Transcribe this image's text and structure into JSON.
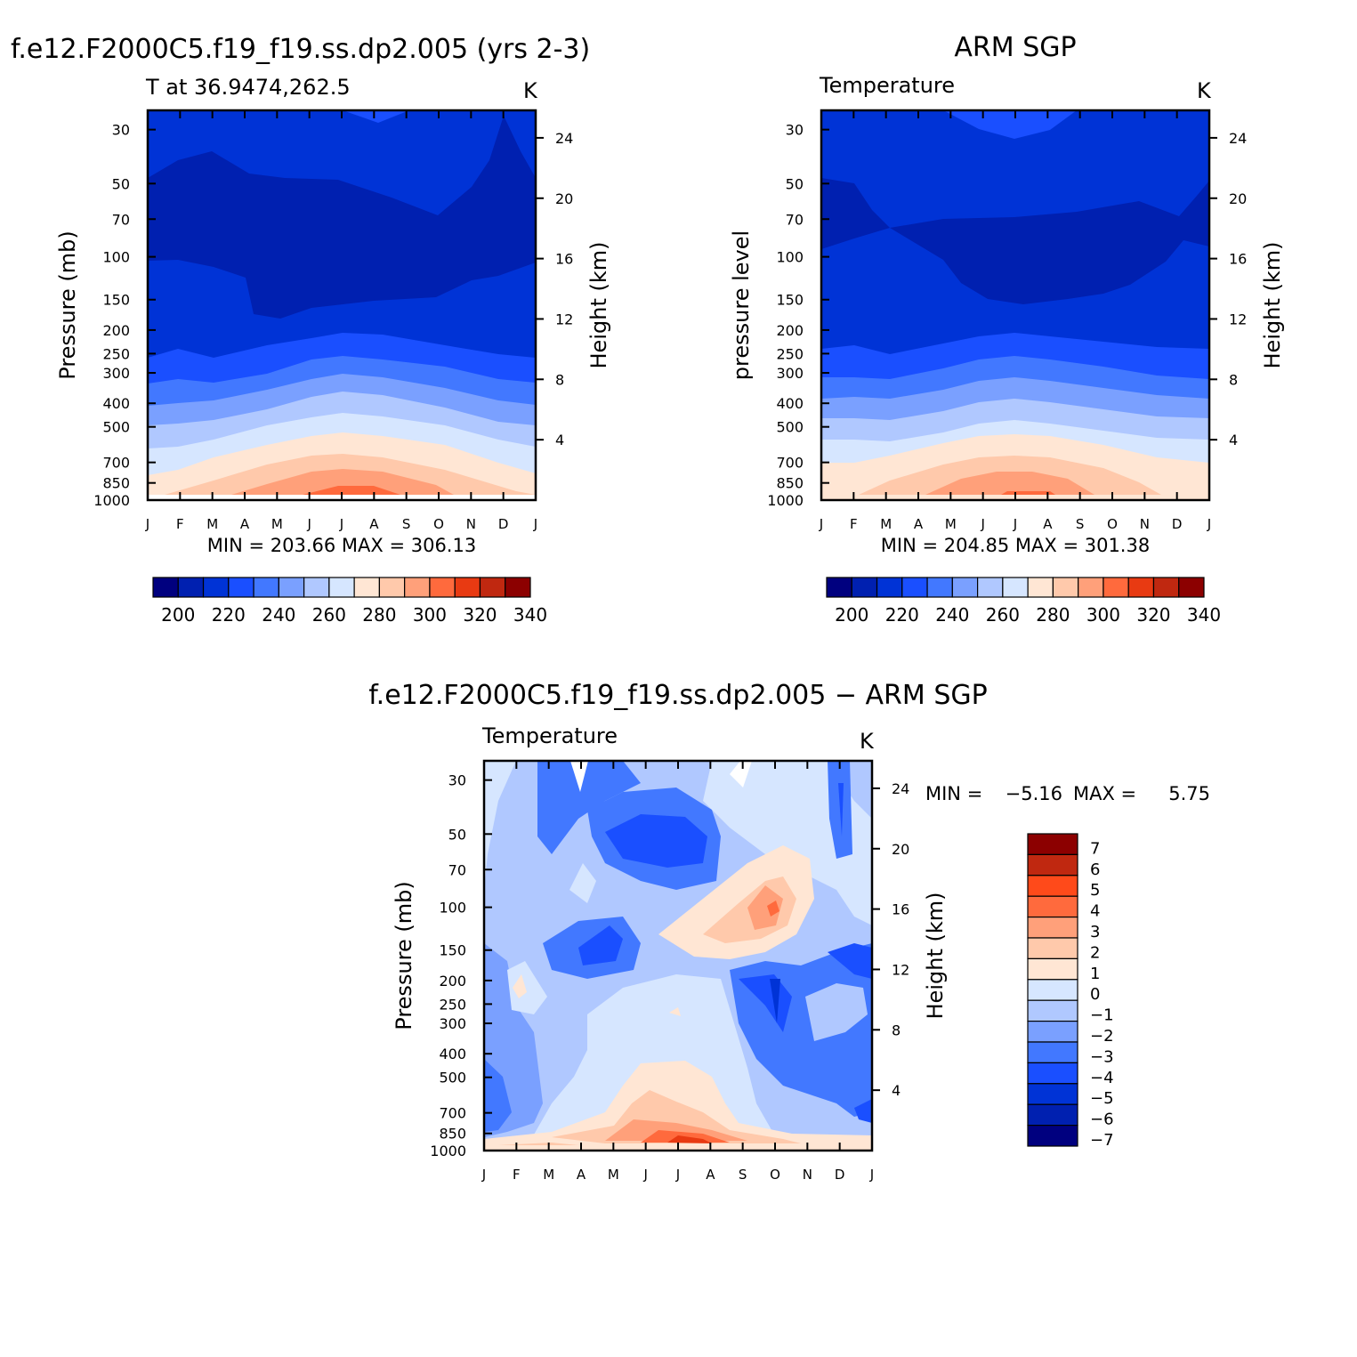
{
  "colors": {
    "levels200to340": [
      "#00007f",
      "#0020b0",
      "#0033d6",
      "#1a4fff",
      "#4278ff",
      "#7aa0ff",
      "#b0c8ff",
      "#d6e6ff",
      "#ffe6d4",
      "#ffc9ab",
      "#ffa07a",
      "#ff6a3d",
      "#e83a12",
      "#c02810",
      "#8c0000"
    ],
    "diffLevels": [
      "#00007f",
      "#0020b0",
      "#0033d6",
      "#1a4fff",
      "#4278ff",
      "#7aa0ff",
      "#b0c8ff",
      "#d6e6ff",
      "#ffe6d4",
      "#ffc9ab",
      "#ffa07a",
      "#ff6a3d",
      "#ff4a1a",
      "#c02810",
      "#8c0000"
    ]
  },
  "chart_data": [
    {
      "type": "heatmap",
      "title": "f.e12.F2000C5.f19_f19.ss.dp2.005 (yrs 2-3)",
      "subtitle_left": "T at 36.9474,262.5",
      "units": "K",
      "ylabel": "Pressure (mb)",
      "y2label": "Height (km)",
      "x_ticks": [
        "J",
        "F",
        "M",
        "A",
        "M",
        "J",
        "J",
        "A",
        "S",
        "O",
        "N",
        "D",
        "J"
      ],
      "y_ticks": [
        "30",
        "50",
        "70",
        "100",
        "150",
        "200",
        "250",
        "300",
        "400",
        "500",
        "700",
        "850",
        "1000"
      ],
      "y2_ticks": [
        "24",
        "20",
        "16",
        "12",
        "8",
        "4"
      ],
      "min_max": "MIN = 203.66 MAX = 306.13",
      "colorbar_labels": [
        "200",
        "220",
        "240",
        "260",
        "280",
        "300",
        "320",
        "340"
      ],
      "value_range": [
        203.66,
        306.13
      ]
    },
    {
      "type": "heatmap",
      "title": "ARM SGP",
      "subtitle_left": "Temperature",
      "units": "K",
      "ylabel": "pressure level",
      "y2label": "Height (km)",
      "x_ticks": [
        "J",
        "F",
        "M",
        "A",
        "M",
        "J",
        "J",
        "A",
        "S",
        "O",
        "N",
        "D",
        "J"
      ],
      "y_ticks": [
        "30",
        "50",
        "70",
        "100",
        "150",
        "200",
        "250",
        "300",
        "400",
        "500",
        "700",
        "850",
        "1000"
      ],
      "y2_ticks": [
        "24",
        "20",
        "16",
        "12",
        "8",
        "4"
      ],
      "min_max": "MIN = 204.85 MAX = 301.38",
      "colorbar_labels": [
        "200",
        "220",
        "240",
        "260",
        "280",
        "300",
        "320",
        "340"
      ],
      "value_range": [
        204.85,
        301.38
      ]
    },
    {
      "type": "heatmap",
      "title": "f.e12.F2000C5.f19_f19.ss.dp2.005 − ARM SGP",
      "subtitle_left": "Temperature",
      "units": "K",
      "ylabel": "Pressure (mb)",
      "y2label": "Height (km)",
      "x_ticks": [
        "J",
        "F",
        "M",
        "A",
        "M",
        "J",
        "J",
        "A",
        "S",
        "O",
        "N",
        "D",
        "J"
      ],
      "y_ticks": [
        "30",
        "50",
        "70",
        "100",
        "150",
        "200",
        "250",
        "300",
        "400",
        "500",
        "700",
        "850",
        "1000"
      ],
      "y2_ticks": [
        "24",
        "20",
        "16",
        "12",
        "8",
        "4"
      ],
      "min_label": "MIN =",
      "min_value": "−5.16",
      "max_label": "MAX =",
      "max_value": "5.75",
      "colorbar_labels": [
        "7",
        "6",
        "5",
        "4",
        "3",
        "2",
        "1",
        "0",
        "−1",
        "−2",
        "−3",
        "−4",
        "−5",
        "−6",
        "−7"
      ],
      "value_range": [
        -5.16,
        5.75
      ]
    }
  ]
}
